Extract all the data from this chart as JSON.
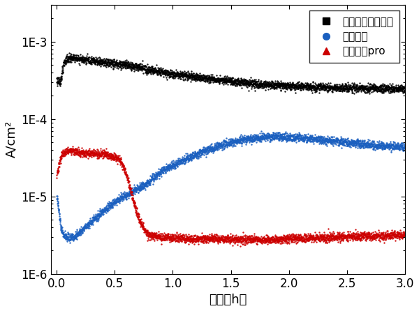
{
  "title": "",
  "xlabel": "时间（h）",
  "ylabel": "A/cm²",
  "xlim": [
    -0.05,
    3.0
  ],
  "ylim_log": [
    1e-06,
    0.003
  ],
  "legend": [
    {
      "label": "翊迈三代（碳基）",
      "color": "#000000",
      "marker": "s"
    },
    {
      "label": "翊迈四代",
      "color": "#1a5fbf",
      "marker": "o"
    },
    {
      "label": "翊迈四代pro",
      "color": "#cc0000",
      "marker": "^"
    }
  ],
  "series": {
    "black": {
      "color": "#000000",
      "x": [
        0.0,
        0.01,
        0.02,
        0.03,
        0.04,
        0.05,
        0.06,
        0.07,
        0.08,
        0.1,
        0.12,
        0.15,
        0.2,
        0.25,
        0.3,
        0.4,
        0.5,
        0.6,
        0.7,
        0.8,
        0.9,
        1.0,
        1.2,
        1.4,
        1.6,
        1.8,
        2.0,
        2.2,
        2.4,
        2.6,
        2.8,
        3.0
      ],
      "y": [
        0.00032,
        0.00031,
        0.0003,
        0.00031,
        0.00035,
        0.00042,
        0.0005,
        0.00056,
        0.00059,
        0.00061,
        0.00062,
        0.000615,
        0.000605,
        0.00059,
        0.000575,
        0.00055,
        0.00052,
        0.0005,
        0.00047,
        0.00044,
        0.00041,
        0.000385,
        0.00035,
        0.00032,
        0.0003,
        0.00028,
        0.000268,
        0.00026,
        0.000255,
        0.000252,
        0.00025,
        0.000248
      ]
    },
    "blue": {
      "color": "#1a5fbf",
      "x": [
        0.0,
        0.01,
        0.02,
        0.03,
        0.04,
        0.05,
        0.06,
        0.08,
        0.1,
        0.12,
        0.15,
        0.18,
        0.2,
        0.25,
        0.3,
        0.35,
        0.4,
        0.45,
        0.5,
        0.55,
        0.6,
        0.65,
        0.7,
        0.75,
        0.8,
        0.85,
        0.9,
        1.0,
        1.1,
        1.2,
        1.3,
        1.4,
        1.5,
        1.6,
        1.7,
        1.8,
        1.9,
        2.0,
        2.1,
        2.2,
        2.3,
        2.4,
        2.5,
        2.6,
        2.7,
        2.8,
        2.9,
        3.0
      ],
      "y": [
        1e-05,
        8e-06,
        6e-06,
        4.5e-06,
        3.8e-06,
        3.4e-06,
        3.2e-06,
        3e-06,
        2.9e-06,
        2.9e-06,
        3e-06,
        3.2e-06,
        3.5e-06,
        4e-06,
        4.8e-06,
        5.5e-06,
        6.5e-06,
        7.5e-06,
        8.5e-06,
        9.5e-06,
        1.05e-05,
        1.15e-05,
        1.25e-05,
        1.4e-05,
        1.6e-05,
        1.8e-05,
        2.1e-05,
        2.5e-05,
        3e-05,
        3.5e-05,
        4e-05,
        4.5e-05,
        5e-05,
        5.4e-05,
        5.7e-05,
        5.85e-05,
        5.9e-05,
        5.85e-05,
        5.75e-05,
        5.6e-05,
        5.4e-05,
        5.2e-05,
        5e-05,
        4.8e-05,
        4.65e-05,
        4.55e-05,
        4.48e-05,
        4.4e-05
      ]
    },
    "red": {
      "color": "#cc0000",
      "x": [
        0.0,
        0.01,
        0.02,
        0.03,
        0.04,
        0.05,
        0.06,
        0.08,
        0.1,
        0.12,
        0.15,
        0.18,
        0.2,
        0.25,
        0.3,
        0.35,
        0.4,
        0.45,
        0.5,
        0.55,
        0.6,
        0.62,
        0.65,
        0.68,
        0.7,
        0.72,
        0.75,
        0.78,
        0.8,
        0.85,
        0.9,
        1.0,
        1.2,
        1.4,
        1.6,
        1.8,
        2.0,
        2.2,
        2.4,
        2.6,
        2.8,
        3.0
      ],
      "y": [
        2e-05,
        2.2e-05,
        2.5e-05,
        2.9e-05,
        3.3e-05,
        3.6e-05,
        3.8e-05,
        3.85e-05,
        3.9e-05,
        3.88e-05,
        3.82e-05,
        3.75e-05,
        3.7e-05,
        3.65e-05,
        3.6e-05,
        3.55e-05,
        3.5e-05,
        3.4e-05,
        3.2e-05,
        2.8e-05,
        2e-05,
        1.5e-05,
        1e-05,
        7e-06,
        5.5e-06,
        4.5e-06,
        3.8e-06,
        3.4e-06,
        3.2e-06,
        3.1e-06,
        3e-06,
        2.9e-06,
        2.85e-06,
        2.82e-06,
        2.8e-06,
        2.8e-06,
        2.85e-06,
        2.9e-06,
        3e-06,
        3.05e-06,
        3.1e-06,
        3.15e-06
      ]
    }
  },
  "background_color": "#ffffff",
  "tick_fontsize": 12,
  "label_fontsize": 13,
  "legend_fontsize": 11,
  "dot_size": 3,
  "noise_sigma": 0.06
}
